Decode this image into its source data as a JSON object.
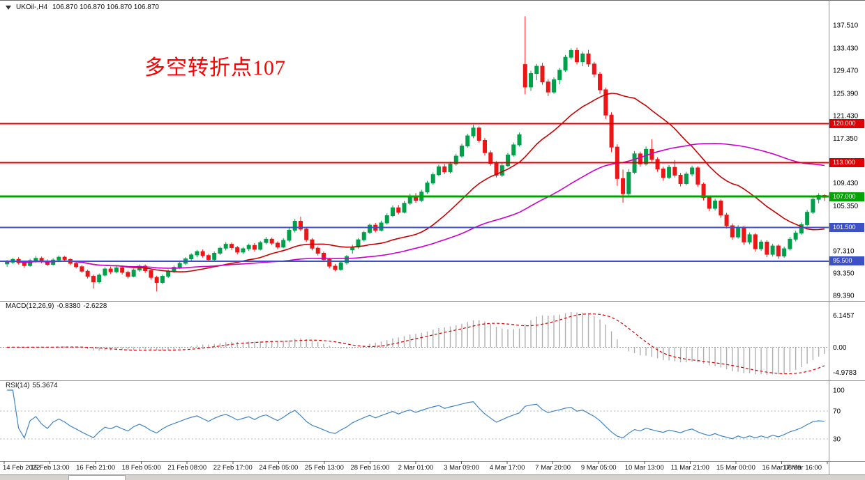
{
  "window": {
    "symbol_title": "UKOil-,H4",
    "ohlc_readout": "106.870 106.870 106.870 106.870",
    "annotation_text": "多空转折点107"
  },
  "colors": {
    "bull": "#00A04A",
    "bear": "#ED1515",
    "ma_fast": "#C80000",
    "ma_slow": "#CC00CC",
    "macd_hist": "#AFAFAF",
    "macd_signal": "#D00000",
    "rsi_line": "#3E84C6",
    "level_red": "#DE0000",
    "level_green": "#00A400",
    "level_blue": "#3C50C8",
    "annotation": "#FF0000",
    "axis_text": "#000000",
    "panel_border": "#919191"
  },
  "chart_data": {
    "type": "candlestick",
    "symbol": "UKOil-",
    "timeframe": "H4",
    "title": "UKOil-,H4 106.870 106.870 106.870 106.870",
    "price_range": {
      "min": 88.9,
      "max": 141.0
    },
    "price_axis_labels": [
      "137.510",
      "133.430",
      "129.470",
      "125.390",
      "121.430",
      "117.350",
      "109.430",
      "105.350",
      "97.310",
      "93.350",
      "89.390"
    ],
    "time_axis_labels": [
      "14 Feb 2022",
      "15 Feb 13:00",
      "16 Feb 21:00",
      "18 Feb 05:00",
      "21 Feb 08:00",
      "22 Feb 17:00",
      "24 Feb 05:00",
      "25 Feb 13:00",
      "28 Feb 16:00",
      "2 Mar 01:00",
      "3 Mar 09:00",
      "4 Mar 17:00",
      "7 Mar 20:00",
      "9 Mar 05:00",
      "10 Mar 13:00",
      "11 Mar 21:00",
      "15 Mar 00:00",
      "16 Mar 08:00",
      "17 Mar 16:00"
    ],
    "levels": [
      {
        "price": 120.0,
        "label": "120.000",
        "color": "#DE0000",
        "width": 2
      },
      {
        "price": 113.0,
        "label": "113.000",
        "color": "#DE0000",
        "width": 2
      },
      {
        "price": 107.0,
        "label": "107.000",
        "color": "#00A400",
        "width": 3
      },
      {
        "price": 101.5,
        "label": "101.500",
        "color": "#3C50C8",
        "width": 2
      },
      {
        "price": 95.5,
        "label": "95.500",
        "color": "#3C50C8",
        "width": 2
      }
    ],
    "moving_averages": [
      {
        "period": 20,
        "color": "#C80000"
      },
      {
        "period": 55,
        "color": "#CC00CC"
      }
    ],
    "candles": [
      [
        95.0,
        95.7,
        94.5,
        95.3
      ],
      [
        95.3,
        96.1,
        95.0,
        95.8
      ],
      [
        95.8,
        96.2,
        94.9,
        95.2
      ],
      [
        95.2,
        95.6,
        94.3,
        94.7
      ],
      [
        94.7,
        95.9,
        94.5,
        95.6
      ],
      [
        95.6,
        96.4,
        95.2,
        96.0
      ],
      [
        96.0,
        96.3,
        95.1,
        95.4
      ],
      [
        95.4,
        95.8,
        94.6,
        94.9
      ],
      [
        94.9,
        96.0,
        94.7,
        95.7
      ],
      [
        95.7,
        96.5,
        95.3,
        96.2
      ],
      [
        96.2,
        96.4,
        95.5,
        95.8
      ],
      [
        95.8,
        96.0,
        94.8,
        95.1
      ],
      [
        95.1,
        95.4,
        94.2,
        94.5
      ],
      [
        94.5,
        94.8,
        93.4,
        93.7
      ],
      [
        93.7,
        94.0,
        92.4,
        92.8
      ],
      [
        92.8,
        93.1,
        90.6,
        91.8
      ],
      [
        91.8,
        93.3,
        91.5,
        93.0
      ],
      [
        93.0,
        94.4,
        92.8,
        94.1
      ],
      [
        94.1,
        94.5,
        93.2,
        93.6
      ],
      [
        93.6,
        94.6,
        93.3,
        94.3
      ],
      [
        94.3,
        94.7,
        93.1,
        93.5
      ],
      [
        93.5,
        93.8,
        92.4,
        92.8
      ],
      [
        92.8,
        94.2,
        92.6,
        93.9
      ],
      [
        93.9,
        94.9,
        93.6,
        94.6
      ],
      [
        94.6,
        94.9,
        93.4,
        93.8
      ],
      [
        93.8,
        94.0,
        92.2,
        92.6
      ],
      [
        92.6,
        92.9,
        90.1,
        91.7
      ],
      [
        91.7,
        93.1,
        91.4,
        92.8
      ],
      [
        92.8,
        94.0,
        92.5,
        93.7
      ],
      [
        93.7,
        94.7,
        93.4,
        94.4
      ],
      [
        94.4,
        95.4,
        94.1,
        95.1
      ],
      [
        95.1,
        96.2,
        94.8,
        95.9
      ],
      [
        95.9,
        96.9,
        95.6,
        96.6
      ],
      [
        96.6,
        97.5,
        96.2,
        97.2
      ],
      [
        97.2,
        97.6,
        96.1,
        96.5
      ],
      [
        96.5,
        96.8,
        95.4,
        95.8
      ],
      [
        95.8,
        97.2,
        95.6,
        96.9
      ],
      [
        96.9,
        98.1,
        96.6,
        97.8
      ],
      [
        97.8,
        98.9,
        97.4,
        98.5
      ],
      [
        98.5,
        98.8,
        97.5,
        97.9
      ],
      [
        97.9,
        98.2,
        96.7,
        97.1
      ],
      [
        97.1,
        98.0,
        96.8,
        97.7
      ],
      [
        97.7,
        98.6,
        97.3,
        98.3
      ],
      [
        98.3,
        98.7,
        97.2,
        97.6
      ],
      [
        97.6,
        99.1,
        97.4,
        98.8
      ],
      [
        98.8,
        99.8,
        98.5,
        99.4
      ],
      [
        99.4,
        99.7,
        98.3,
        98.7
      ],
      [
        98.7,
        99.0,
        97.6,
        98.0
      ],
      [
        98.0,
        99.6,
        97.8,
        99.2
      ],
      [
        99.2,
        101.4,
        98.9,
        101.0
      ],
      [
        101.0,
        103.0,
        100.6,
        102.6
      ],
      [
        102.6,
        103.4,
        100.8,
        101.2
      ],
      [
        101.2,
        101.6,
        98.9,
        99.3
      ],
      [
        99.3,
        99.6,
        97.4,
        97.8
      ],
      [
        97.8,
        98.1,
        96.5,
        96.9
      ],
      [
        96.9,
        97.2,
        95.4,
        95.8
      ],
      [
        95.8,
        96.1,
        94.2,
        94.6
      ],
      [
        94.6,
        95.0,
        93.7,
        94.0
      ],
      [
        94.0,
        95.5,
        93.8,
        95.2
      ],
      [
        95.2,
        96.6,
        94.9,
        96.3
      ],
      [
        97.5,
        98.4,
        96.8,
        98.0
      ],
      [
        98.0,
        99.6,
        97.7,
        99.3
      ],
      [
        99.3,
        100.9,
        99.0,
        100.6
      ],
      [
        100.6,
        102.2,
        100.3,
        101.9
      ],
      [
        101.9,
        102.3,
        100.6,
        101.0
      ],
      [
        101.0,
        102.7,
        100.8,
        102.3
      ],
      [
        102.3,
        104.0,
        102.0,
        103.6
      ],
      [
        103.6,
        105.4,
        103.3,
        105.0
      ],
      [
        105.0,
        105.5,
        103.8,
        104.2
      ],
      [
        104.2,
        106.2,
        104.0,
        105.8
      ],
      [
        105.8,
        107.5,
        105.5,
        107.1
      ],
      [
        107.1,
        107.6,
        105.9,
        106.3
      ],
      [
        106.3,
        108.2,
        106.0,
        107.8
      ],
      [
        107.8,
        109.8,
        107.5,
        109.4
      ],
      [
        109.4,
        111.3,
        109.1,
        110.9
      ],
      [
        110.9,
        112.7,
        110.6,
        112.3
      ],
      [
        112.3,
        112.8,
        111.0,
        111.4
      ],
      [
        111.4,
        113.2,
        111.1,
        112.8
      ],
      [
        112.8,
        114.6,
        112.5,
        114.2
      ],
      [
        114.2,
        116.4,
        113.9,
        116.0
      ],
      [
        116.0,
        118.2,
        115.7,
        117.8
      ],
      [
        117.8,
        119.8,
        117.4,
        119.2
      ],
      [
        119.2,
        119.5,
        116.6,
        117.0
      ],
      [
        117.0,
        117.4,
        114.3,
        114.8
      ],
      [
        114.8,
        115.2,
        112.5,
        112.9
      ],
      [
        112.9,
        113.3,
        110.4,
        110.8
      ],
      [
        110.8,
        112.9,
        110.5,
        112.5
      ],
      [
        112.5,
        114.8,
        112.2,
        114.4
      ],
      [
        114.4,
        116.6,
        114.1,
        116.2
      ],
      [
        116.2,
        118.4,
        115.9,
        118.0
      ],
      [
        130.5,
        139.1,
        125.2,
        126.5
      ],
      [
        126.5,
        129.4,
        125.8,
        128.9
      ],
      [
        128.9,
        130.6,
        127.7,
        130.2
      ],
      [
        130.2,
        130.8,
        126.9,
        127.4
      ],
      [
        127.4,
        127.9,
        124.9,
        125.6
      ],
      [
        125.6,
        128.2,
        125.3,
        127.8
      ],
      [
        127.8,
        129.9,
        127.0,
        129.5
      ],
      [
        129.5,
        132.2,
        129.2,
        131.8
      ],
      [
        131.8,
        133.4,
        131.4,
        133.0
      ],
      [
        133.0,
        133.5,
        130.5,
        131.0
      ],
      [
        131.0,
        132.8,
        130.2,
        132.4
      ],
      [
        132.4,
        133.1,
        130.1,
        130.6
      ],
      [
        130.6,
        131.0,
        128.2,
        128.8
      ],
      [
        128.8,
        129.2,
        125.3,
        126.0
      ],
      [
        126.0,
        126.4,
        120.8,
        121.5
      ],
      [
        121.5,
        122.0,
        114.9,
        115.8
      ],
      [
        115.8,
        116.3,
        108.9,
        110.2
      ],
      [
        110.2,
        111.8,
        105.9,
        107.5
      ],
      [
        107.5,
        111.9,
        107.1,
        111.3
      ],
      [
        111.3,
        115.1,
        111.0,
        114.6
      ],
      [
        114.6,
        115.0,
        112.3,
        112.8
      ],
      [
        112.8,
        115.9,
        112.5,
        115.4
      ],
      [
        115.4,
        117.2,
        113.2,
        113.6
      ],
      [
        113.6,
        114.0,
        111.4,
        111.9
      ],
      [
        111.9,
        112.3,
        109.8,
        110.4
      ],
      [
        110.4,
        112.6,
        110.1,
        112.2
      ],
      [
        112.2,
        113.5,
        110.4,
        110.8
      ],
      [
        110.8,
        111.2,
        108.8,
        109.3
      ],
      [
        109.3,
        111.4,
        109.0,
        111.0
      ],
      [
        111.0,
        112.5,
        110.6,
        112.1
      ],
      [
        112.1,
        112.4,
        108.7,
        109.2
      ],
      [
        109.2,
        109.5,
        106.3,
        106.8
      ],
      [
        106.8,
        107.2,
        104.4,
        104.9
      ],
      [
        104.9,
        106.6,
        104.5,
        106.2
      ],
      [
        106.2,
        106.5,
        103.2,
        103.7
      ],
      [
        103.7,
        104.1,
        101.3,
        101.8
      ],
      [
        101.8,
        102.2,
        99.3,
        99.8
      ],
      [
        99.8,
        101.9,
        99.5,
        101.5
      ],
      [
        101.5,
        101.8,
        98.4,
        98.9
      ],
      [
        98.9,
        100.6,
        98.5,
        100.2
      ],
      [
        100.2,
        100.5,
        97.2,
        97.7
      ],
      [
        97.7,
        99.3,
        97.3,
        98.9
      ],
      [
        98.9,
        99.2,
        96.2,
        96.7
      ],
      [
        96.7,
        98.6,
        96.3,
        98.2
      ],
      [
        98.2,
        98.5,
        95.9,
        96.4
      ],
      [
        96.4,
        98.1,
        96.1,
        97.7
      ],
      [
        97.7,
        99.8,
        97.4,
        99.4
      ],
      [
        99.4,
        100.9,
        99.0,
        100.5
      ],
      [
        100.5,
        102.4,
        100.2,
        102.0
      ],
      [
        102.0,
        104.6,
        101.7,
        104.2
      ],
      [
        104.2,
        106.9,
        103.9,
        106.5
      ],
      [
        106.5,
        107.6,
        105.8,
        107.2
      ],
      [
        107.2,
        107.4,
        106.2,
        106.87
      ]
    ],
    "macd": {
      "label": "MACD(12,26,9)",
      "main_value": "-0.8380",
      "signal_value": "-2.6228",
      "fast": 12,
      "slow": 26,
      "smoothing": 9,
      "axis_labels": {
        "max": "6.1457",
        "zero": "0.00",
        "min": "-4.9783"
      }
    },
    "rsi": {
      "label": "RSI(14)",
      "value": "55.3674",
      "period": 14,
      "axis_labels": [
        "100",
        "70",
        "30"
      ],
      "guide_levels": [
        70,
        30
      ]
    }
  }
}
